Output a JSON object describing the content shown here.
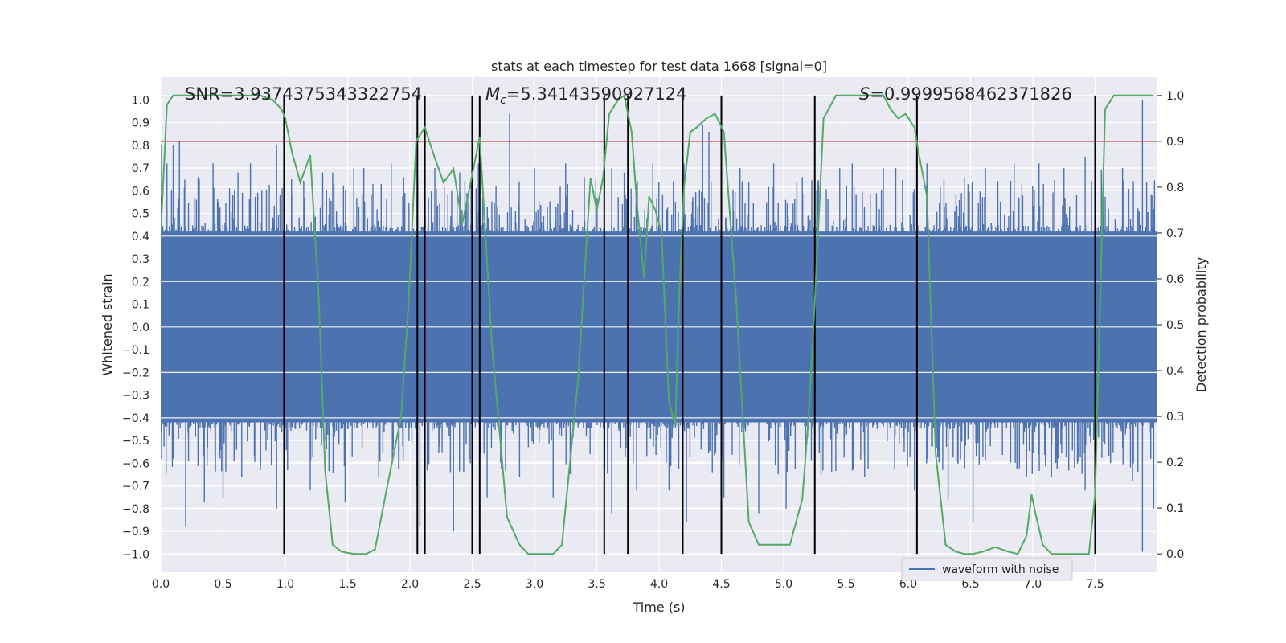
{
  "chart_data": {
    "type": "line",
    "title": "stats at each timestep for test data 1668 [signal=0]",
    "xlabel": "Time (s)",
    "ylabel_left": "Whitened strain",
    "ylabel_right": "Detection probability",
    "xlim": [
      0,
      8.0
    ],
    "ylim_left": [
      -1.08,
      1.1
    ],
    "ylim_right": [
      -0.04,
      1.04
    ],
    "x_ticks": [
      0.0,
      0.5,
      1.0,
      1.5,
      2.0,
      2.5,
      3.0,
      3.5,
      4.0,
      4.5,
      5.0,
      5.5,
      6.0,
      6.5,
      7.0,
      7.5
    ],
    "x_tick_labels": [
      "0.0",
      "0.5",
      "1.0",
      "1.5",
      "2.0",
      "2.5",
      "3.0",
      "3.5",
      "4.0",
      "4.5",
      "5.0",
      "5.5",
      "6.0",
      "6.5",
      "7.0",
      "7.5"
    ],
    "y_ticks_left": [
      -1.0,
      -0.9,
      -0.8,
      -0.7,
      -0.6,
      -0.5,
      -0.4,
      -0.3,
      -0.2,
      -0.1,
      0.0,
      0.1,
      0.2,
      0.3,
      0.4,
      0.5,
      0.6,
      0.7,
      0.8,
      0.9,
      1.0
    ],
    "y_tick_labels_left": [
      "−1.0",
      "−0.9",
      "−0.8",
      "−0.7",
      "−0.6",
      "−0.5",
      "−0.4",
      "−0.3",
      "−0.2",
      "−0.1",
      "0.0",
      "0.1",
      "0.2",
      "0.3",
      "0.4",
      "0.5",
      "0.6",
      "0.7",
      "0.8",
      "0.9",
      "1.0"
    ],
    "y_ticks_right": [
      0.0,
      0.1,
      0.2,
      0.3,
      0.4,
      0.5,
      0.6,
      0.7,
      0.8,
      0.9,
      1.0
    ],
    "y_tick_labels_right": [
      "0.0",
      "0.1",
      "0.2",
      "0.3",
      "0.4",
      "0.5",
      "0.6",
      "0.7",
      "0.8",
      "0.9",
      "1.0"
    ],
    "annotations": {
      "snr": "SNR=3.9374375343322754",
      "mc_symbol": "M",
      "mc_subscript": "c",
      "mc_value": "=5.34143590927124",
      "s_symbol": "S",
      "s_value": "=0.9999568462371826"
    },
    "threshold": {
      "axis": "right",
      "value": 0.9,
      "color": "#c44e52"
    },
    "vertical_lines": [
      0.99,
      2.06,
      2.12,
      2.5,
      2.56,
      3.56,
      3.75,
      4.19,
      4.5,
      5.25,
      6.07,
      7.5
    ],
    "grid": true,
    "legend": {
      "placement": "lower-right",
      "entries": [
        "waveform with noise"
      ]
    },
    "series": [
      {
        "name": "waveform with noise",
        "axis": "left",
        "color": "#4c72b0",
        "style": "noise",
        "band_positive": 0.45,
        "band_negative": -0.45,
        "spikes": [
          [
            0.0,
            0.8
          ],
          [
            0.05,
            0.72
          ],
          [
            0.1,
            0.8
          ],
          [
            0.1,
            -0.58
          ],
          [
            0.15,
            0.82
          ],
          [
            0.2,
            -0.88
          ],
          [
            0.3,
            0.66
          ],
          [
            0.35,
            -0.77
          ],
          [
            0.42,
            0.72
          ],
          [
            0.5,
            -0.75
          ],
          [
            0.62,
            0.68
          ],
          [
            0.65,
            -0.66
          ],
          [
            0.72,
            0.72
          ],
          [
            0.8,
            -0.63
          ],
          [
            0.93,
            0.8
          ],
          [
            0.93,
            -0.8
          ],
          [
            1.05,
            0.65
          ],
          [
            1.2,
            -0.72
          ],
          [
            1.3,
            0.68
          ],
          [
            1.38,
            0.68
          ],
          [
            1.48,
            -0.77
          ],
          [
            1.55,
            0.7
          ],
          [
            1.63,
            0.7
          ],
          [
            1.75,
            -0.66
          ],
          [
            1.85,
            0.72
          ],
          [
            1.95,
            0.66
          ],
          [
            2.05,
            -0.7
          ],
          [
            2.08,
            -0.88
          ],
          [
            2.2,
            0.7
          ],
          [
            2.35,
            -0.9
          ],
          [
            2.4,
            0.68
          ],
          [
            2.55,
            0.72
          ],
          [
            2.62,
            -0.75
          ],
          [
            2.8,
            0.94
          ],
          [
            2.88,
            -0.66
          ],
          [
            3.0,
            0.7
          ],
          [
            3.15,
            -0.75
          ],
          [
            3.25,
            0.72
          ],
          [
            3.4,
            0.66
          ],
          [
            3.62,
            0.7
          ],
          [
            3.62,
            -0.82
          ],
          [
            3.72,
            0.68
          ],
          [
            3.82,
            -0.72
          ],
          [
            3.95,
            0.72
          ],
          [
            4.08,
            -0.72
          ],
          [
            4.2,
            0.72
          ],
          [
            4.22,
            -0.86
          ],
          [
            4.35,
            0.89
          ],
          [
            4.4,
            0.86
          ],
          [
            4.52,
            -0.75
          ],
          [
            4.65,
            0.7
          ],
          [
            4.8,
            -0.82
          ],
          [
            4.92,
            0.72
          ],
          [
            5.02,
            -0.8
          ],
          [
            5.15,
            0.66
          ],
          [
            5.3,
            -0.65
          ],
          [
            5.45,
            0.7
          ],
          [
            5.55,
            0.72
          ],
          [
            5.65,
            -0.66
          ],
          [
            5.8,
            0.7
          ],
          [
            5.9,
            0.7
          ],
          [
            6.05,
            -0.72
          ],
          [
            6.15,
            0.72
          ],
          [
            6.32,
            -0.76
          ],
          [
            6.45,
            0.66
          ],
          [
            6.52,
            -0.86
          ],
          [
            6.62,
            0.7
          ],
          [
            6.85,
            0.72
          ],
          [
            6.95,
            -0.66
          ],
          [
            7.05,
            0.72
          ],
          [
            7.15,
            -0.66
          ],
          [
            7.25,
            0.7
          ],
          [
            7.42,
            0.75
          ],
          [
            7.42,
            -0.72
          ],
          [
            7.55,
            0.69
          ],
          [
            7.72,
            0.7
          ],
          [
            7.8,
            -0.68
          ],
          [
            7.88,
            1.0
          ],
          [
            7.88,
            -0.99
          ],
          [
            7.97,
            0.52
          ],
          [
            7.97,
            -0.8
          ]
        ]
      },
      {
        "name": "",
        "axis": "right",
        "color": "#55a868",
        "x": [
          0.0,
          0.05,
          0.1,
          0.2,
          0.3,
          0.4,
          0.5,
          0.6,
          0.7,
          0.8,
          0.9,
          0.97,
          1.0,
          1.05,
          1.12,
          1.2,
          1.27,
          1.32,
          1.38,
          1.45,
          1.55,
          1.65,
          1.72,
          1.82,
          1.93,
          1.99,
          2.05,
          2.12,
          2.18,
          2.27,
          2.35,
          2.42,
          2.48,
          2.56,
          2.66,
          2.78,
          2.88,
          2.95,
          3.05,
          3.15,
          3.22,
          3.35,
          3.45,
          3.5,
          3.55,
          3.6,
          3.67,
          3.72,
          3.78,
          3.82,
          3.88,
          3.92,
          3.97,
          4.02,
          4.08,
          4.13,
          4.16,
          4.2,
          4.25,
          4.3,
          4.38,
          4.45,
          4.52,
          4.62,
          4.72,
          4.8,
          4.87,
          4.95,
          5.05,
          5.15,
          5.2,
          5.25,
          5.32,
          5.42,
          5.55,
          5.68,
          5.8,
          5.86,
          5.92,
          5.98,
          6.05,
          6.08,
          6.15,
          6.22,
          6.3,
          6.38,
          6.45,
          6.52,
          6.6,
          6.7,
          6.8,
          6.88,
          6.95,
          6.99,
          7.02,
          7.08,
          7.15,
          7.25,
          7.35,
          7.45,
          7.5,
          7.58,
          7.65,
          7.75,
          7.85,
          7.97
        ],
        "values": [
          0.7,
          0.98,
          1.0,
          1.0,
          1.0,
          1.0,
          1.0,
          1.0,
          1.0,
          1.0,
          0.99,
          0.97,
          0.95,
          0.88,
          0.81,
          0.87,
          0.55,
          0.18,
          0.02,
          0.005,
          0.0,
          0.0,
          0.01,
          0.15,
          0.3,
          0.55,
          0.9,
          0.93,
          0.88,
          0.81,
          0.84,
          0.72,
          0.8,
          0.91,
          0.45,
          0.08,
          0.02,
          0.0,
          0.0,
          0.0,
          0.02,
          0.38,
          0.82,
          0.75,
          0.82,
          0.96,
          0.99,
          1.0,
          0.92,
          0.77,
          0.6,
          0.78,
          0.75,
          0.7,
          0.33,
          0.28,
          0.55,
          0.8,
          0.92,
          0.93,
          0.95,
          0.96,
          0.92,
          0.55,
          0.07,
          0.02,
          0.02,
          0.02,
          0.02,
          0.12,
          0.3,
          0.55,
          0.95,
          1.0,
          1.0,
          1.0,
          1.0,
          0.97,
          0.95,
          0.96,
          0.93,
          0.88,
          0.78,
          0.22,
          0.02,
          0.005,
          0.0,
          0.0,
          0.005,
          0.015,
          0.005,
          0.0,
          0.04,
          0.13,
          0.09,
          0.02,
          0.0,
          0.0,
          0.0,
          0.0,
          0.13,
          0.97,
          1.0,
          1.0,
          1.0,
          1.0
        ]
      }
    ]
  }
}
